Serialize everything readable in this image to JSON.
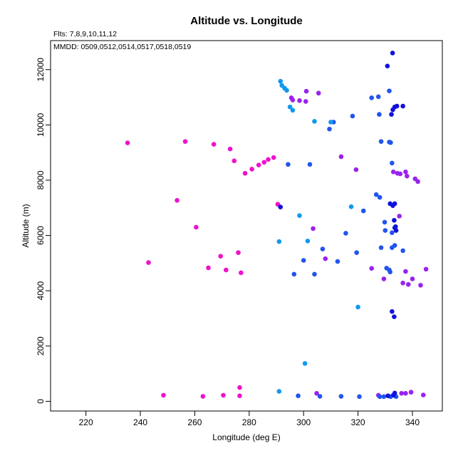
{
  "chart_data": {
    "type": "scatter",
    "title": "Altitude vs. Longitude",
    "annotations": [
      "Flts: 7,8,9,10,11,12",
      "MMDD: 0509,0512,0514,0517,0518,0519"
    ],
    "xlabel": "Longitude (deg E)",
    "ylabel": "Altitude (m)",
    "xlim": [
      207,
      351
    ],
    "ylim": [
      -350,
      13050
    ],
    "xticks": [
      220,
      240,
      260,
      280,
      300,
      320,
      340
    ],
    "yticks": [
      0,
      2000,
      4000,
      6000,
      8000,
      10000,
      12000
    ],
    "grid": false,
    "legend": "none",
    "series": [
      {
        "color": "#ee11cc",
        "points": [
          [
            235.3,
            9350
          ],
          [
            256.5,
            9400
          ],
          [
            267.0,
            9300
          ],
          [
            273.0,
            9130
          ],
          [
            274.5,
            8700
          ],
          [
            278.5,
            8250
          ],
          [
            281.0,
            8400
          ],
          [
            283.5,
            8550
          ],
          [
            285.5,
            8650
          ],
          [
            287.0,
            8750
          ],
          [
            289.0,
            8820
          ],
          [
            253.5,
            7270
          ],
          [
            260.5,
            6300
          ],
          [
            290.5,
            7130
          ],
          [
            269.5,
            5250
          ],
          [
            276.0,
            5380
          ],
          [
            243.0,
            5020
          ],
          [
            265.0,
            4830
          ],
          [
            271.5,
            4750
          ],
          [
            277.0,
            4650
          ],
          [
            248.5,
            220
          ],
          [
            263.0,
            180
          ],
          [
            270.5,
            220
          ],
          [
            276.5,
            200
          ],
          [
            276.5,
            500
          ]
        ]
      },
      {
        "color": "#9922ee",
        "points": [
          [
            295.5,
            10980
          ],
          [
            296.0,
            10900
          ],
          [
            298.5,
            10880
          ],
          [
            300.8,
            10850
          ],
          [
            301.0,
            11220
          ],
          [
            305.5,
            11150
          ],
          [
            313.8,
            8850
          ],
          [
            319.3,
            8380
          ],
          [
            303.5,
            6250
          ],
          [
            308.0,
            5160
          ],
          [
            325.0,
            4810
          ],
          [
            329.5,
            4430
          ],
          [
            333.0,
            8300
          ],
          [
            334.5,
            8250
          ],
          [
            335.5,
            8230
          ],
          [
            337.5,
            8300
          ],
          [
            341.0,
            8050
          ],
          [
            342.0,
            7950
          ],
          [
            338.0,
            8150
          ],
          [
            335.2,
            6700
          ],
          [
            336.5,
            4280
          ],
          [
            337.5,
            4700
          ],
          [
            338.5,
            4230
          ],
          [
            340.0,
            4430
          ],
          [
            343.0,
            4200
          ],
          [
            345.0,
            4780
          ],
          [
            304.8,
            290
          ],
          [
            327.5,
            220
          ],
          [
            336.0,
            290
          ],
          [
            337.5,
            290
          ],
          [
            339.5,
            330
          ],
          [
            344.0,
            230
          ]
        ]
      },
      {
        "color": "#2255ee",
        "points": [
          [
            311.0,
            10100
          ],
          [
            309.5,
            9850
          ],
          [
            318.0,
            10320
          ],
          [
            325.0,
            10980
          ],
          [
            327.5,
            11020
          ],
          [
            327.8,
            10380
          ],
          [
            331.5,
            11230
          ],
          [
            328.5,
            9400
          ],
          [
            331.5,
            9380
          ],
          [
            332.0,
            9360
          ],
          [
            302.3,
            8570
          ],
          [
            294.3,
            8570
          ],
          [
            332.5,
            8620
          ],
          [
            326.7,
            7480
          ],
          [
            328.0,
            7380
          ],
          [
            322.0,
            6890
          ],
          [
            329.8,
            6480
          ],
          [
            330.0,
            6180
          ],
          [
            315.5,
            6080
          ],
          [
            332.5,
            6100
          ],
          [
            319.5,
            5380
          ],
          [
            307.0,
            5510
          ],
          [
            300.0,
            5100
          ],
          [
            296.5,
            4600
          ],
          [
            304.0,
            4600
          ],
          [
            312.5,
            5060
          ],
          [
            328.5,
            5560
          ],
          [
            332.5,
            5560
          ],
          [
            333.5,
            5640
          ],
          [
            336.5,
            5450
          ],
          [
            330.5,
            4820
          ],
          [
            331.5,
            4750
          ],
          [
            331.8,
            4680
          ],
          [
            298.0,
            200
          ],
          [
            306.0,
            180
          ],
          [
            313.8,
            180
          ],
          [
            320.5,
            170
          ],
          [
            328.0,
            170
          ],
          [
            329.5,
            170
          ],
          [
            332.0,
            170
          ],
          [
            334.0,
            170
          ]
        ]
      },
      {
        "color": "#1111dd",
        "points": [
          [
            332.7,
            12600
          ],
          [
            330.8,
            12130
          ],
          [
            332.3,
            10380
          ],
          [
            332.8,
            10550
          ],
          [
            333.5,
            10650
          ],
          [
            334.3,
            10680
          ],
          [
            336.5,
            10680
          ],
          [
            331.8,
            7150
          ],
          [
            332.8,
            7080
          ],
          [
            333.5,
            7150
          ],
          [
            333.3,
            6550
          ],
          [
            333.5,
            6280
          ],
          [
            333.8,
            6320
          ],
          [
            334.0,
            6180
          ],
          [
            291.5,
            7030
          ],
          [
            332.5,
            3250
          ],
          [
            333.3,
            3060
          ],
          [
            333.0,
            220
          ],
          [
            333.5,
            300
          ],
          [
            331.0,
            200
          ]
        ]
      },
      {
        "color": "#1199ee",
        "points": [
          [
            291.5,
            11580
          ],
          [
            292.0,
            11430
          ],
          [
            293.0,
            11330
          ],
          [
            293.8,
            11250
          ],
          [
            295.0,
            10650
          ],
          [
            296.0,
            10530
          ],
          [
            304.0,
            10130
          ],
          [
            310.0,
            10100
          ],
          [
            298.5,
            6720
          ],
          [
            317.5,
            7040
          ],
          [
            291.0,
            5780
          ],
          [
            301.5,
            5800
          ],
          [
            320.0,
            3410
          ],
          [
            300.5,
            1370
          ],
          [
            291.0,
            360
          ]
        ]
      }
    ]
  }
}
